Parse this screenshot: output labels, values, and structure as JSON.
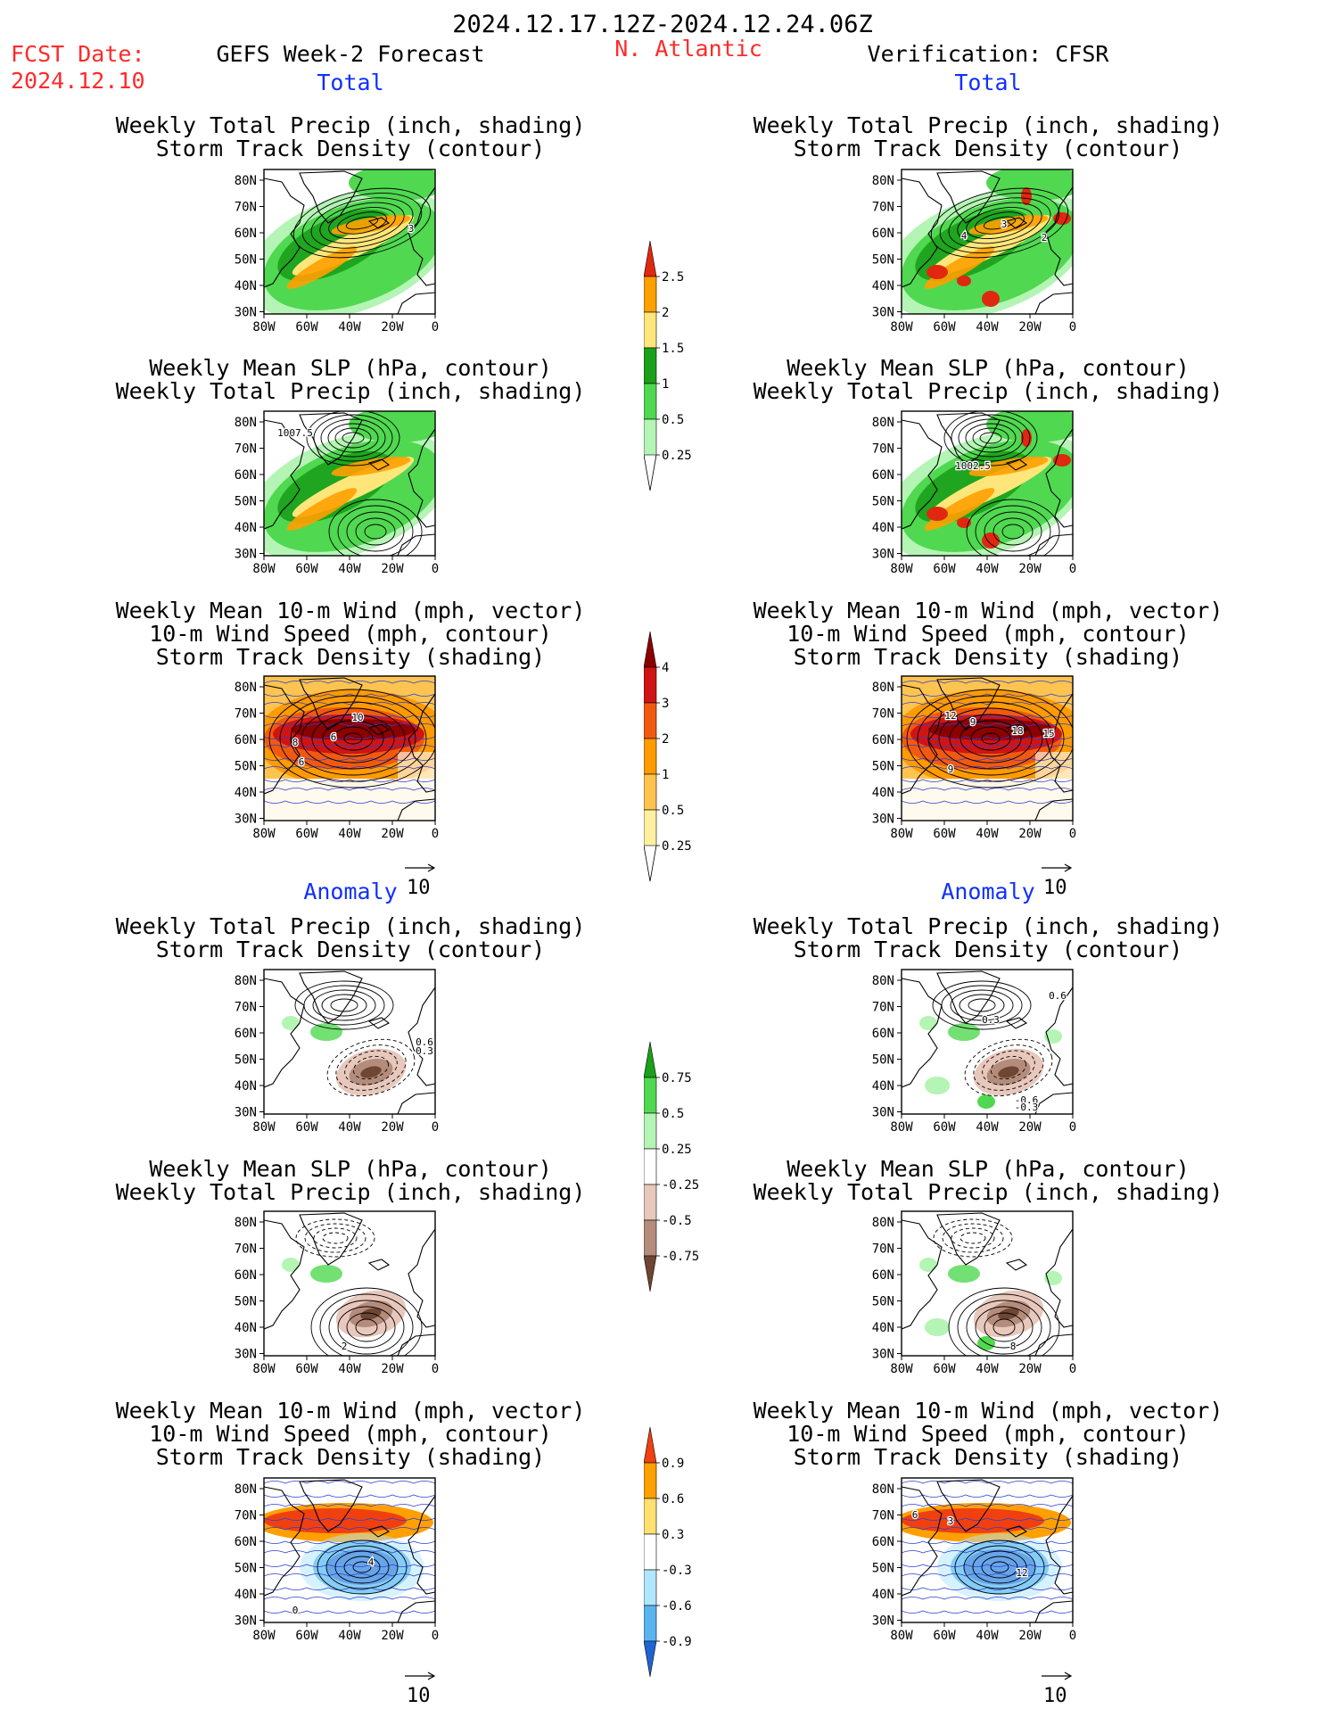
{
  "header": {
    "date_range": "2024.12.17.12Z-2024.12.24.06Z",
    "fcst_label": "FCST Date:",
    "fcst_date": "2024.12.10",
    "model": "GEFS Week-2 Forecast",
    "region": "N. Atlantic",
    "verification": "Verification: CFSR"
  },
  "sections": {
    "total": "Total",
    "anomaly": "Anomaly"
  },
  "panel_titles": {
    "precip_track": [
      "Weekly Total Precip (inch, shading)",
      "Storm Track Density (contour)"
    ],
    "slp_precip": [
      "Weekly Mean SLP (hPa, contour)",
      "Weekly Total Precip (inch, shading)"
    ],
    "wind_track": [
      "Weekly Mean 10-m Wind (mph, vector)",
      "10-m Wind Speed (mph, contour)",
      "Storm Track Density (shading)"
    ]
  },
  "axes": {
    "lat_labels": [
      "80N",
      "70N",
      "60N",
      "50N",
      "40N",
      "30N"
    ],
    "lon_labels": [
      "80W",
      "60W",
      "40W",
      "20W",
      "0"
    ]
  },
  "ref_vector": "10",
  "contour_labels": {
    "fc_total_track": [
      "3"
    ],
    "ob_total_track": [
      "4",
      "3",
      "2"
    ],
    "fc_total_slp": [
      "1007.5"
    ],
    "ob_total_slp": [
      "1002.5"
    ],
    "fc_total_wind": [
      "10",
      "8",
      "6",
      "6"
    ],
    "ob_total_wind": [
      "12",
      "9",
      "18",
      "15",
      "9"
    ],
    "fc_anom_track": [
      "0.6",
      "0.3"
    ],
    "ob_anom_track": [
      "0.6",
      "0.3",
      "-0.6",
      "-0.3"
    ],
    "fc_anom_slp": [
      "2"
    ],
    "ob_anom_slp": [
      "8"
    ],
    "fc_anom_wind": [
      "4",
      "0"
    ],
    "ob_anom_wind": [
      "6",
      "3",
      "12"
    ]
  },
  "colorbars": {
    "precip_total": {
      "labels": [
        "2.5",
        "2",
        "1.5",
        "1",
        "0.5",
        "0.25"
      ],
      "colors": [
        "#e02810",
        "#ffa000",
        "#ffe67a",
        "#1aa01a",
        "#50d850",
        "#b4f4b4"
      ]
    },
    "track_total": {
      "labels": [
        "4",
        "3",
        "2",
        "1",
        "0.5",
        "0.25"
      ],
      "colors": [
        "#8c0000",
        "#d01414",
        "#f05a10",
        "#ff9a00",
        "#ffc450",
        "#fff0a0"
      ]
    },
    "precip_anom": {
      "labels": [
        "0.75",
        "0.5",
        "0.25",
        "-0.25",
        "-0.5",
        "-0.75"
      ],
      "colors": [
        "#1aa01a",
        "#50d850",
        "#b4f4b4",
        "#ffffff",
        "#e8c8bc",
        "#b48c7c",
        "#6e4632"
      ]
    },
    "track_anom": {
      "labels": [
        "0.9",
        "0.6",
        "0.3",
        "-0.3",
        "-0.6",
        "-0.9"
      ],
      "colors": [
        "#f04010",
        "#ffa000",
        "#ffe070",
        "#ffffff",
        "#b0e6ff",
        "#5ab4f0",
        "#1e64d2"
      ]
    }
  }
}
